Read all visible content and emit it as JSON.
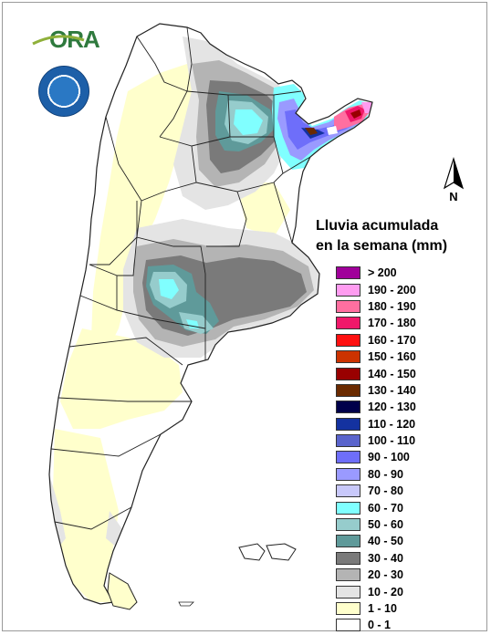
{
  "branding": {
    "logo_text": "ORA",
    "seal_name": "servicio-meteorologico-nacional-seal"
  },
  "north_arrow": {
    "label": "N"
  },
  "legend": {
    "title_line1": "Lluvia acumulada",
    "title_line2": "en la semana (mm)",
    "items": [
      {
        "label": "> 200",
        "color": "#a0009a"
      },
      {
        "label": "190 - 200",
        "color": "#ff9cf0"
      },
      {
        "label": "180 - 190",
        "color": "#ff6fa0"
      },
      {
        "label": "170 - 180",
        "color": "#f0186a"
      },
      {
        "label": "160 - 170",
        "color": "#ff1010"
      },
      {
        "label": "150 - 160",
        "color": "#cc3300"
      },
      {
        "label": "140 - 150",
        "color": "#990000"
      },
      {
        "label": "130 - 140",
        "color": "#6a2a00"
      },
      {
        "label": "120 - 130",
        "color": "#00004a"
      },
      {
        "label": "110 - 120",
        "color": "#1432a0"
      },
      {
        "label": "100 - 110",
        "color": "#5a64cc"
      },
      {
        "label": "90 - 100",
        "color": "#6e6efa"
      },
      {
        "label": "80 - 90",
        "color": "#9a9aff"
      },
      {
        "label": "70 - 80",
        "color": "#c8c8fa"
      },
      {
        "label": "60 - 70",
        "color": "#80ffff"
      },
      {
        "label": "50 - 60",
        "color": "#96cccc"
      },
      {
        "label": "40 - 50",
        "color": "#5f9a9a"
      },
      {
        "label": "30 - 40",
        "color": "#7a7a7a"
      },
      {
        "label": "20 - 30",
        "color": "#b4b4b4"
      },
      {
        "label": "10 - 20",
        "color": "#e4e4e4"
      },
      {
        "label": "1 - 10",
        "color": "#ffffcc"
      },
      {
        "label": "0 - 1",
        "color": "#ffffff"
      }
    ]
  }
}
